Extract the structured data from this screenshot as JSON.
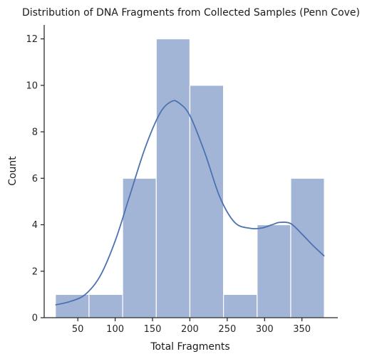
{
  "chart_data": {
    "type": "bar",
    "subtype": "histogram-with-kde",
    "title": "Distribution of DNA Fragments from Collected Samples (Penn Cove)",
    "xlabel": "Total Fragments",
    "ylabel": "Count",
    "xlim": [
      5,
      398
    ],
    "ylim": [
      0,
      12.6
    ],
    "xticks": [
      50,
      100,
      150,
      200,
      250,
      300,
      350
    ],
    "yticks": [
      0,
      2,
      4,
      6,
      8,
      10,
      12
    ],
    "grid": false,
    "legend": "none",
    "bins": [
      {
        "x0": 20,
        "x1": 65,
        "count": 1
      },
      {
        "x0": 65,
        "x1": 110,
        "count": 1
      },
      {
        "x0": 110,
        "x1": 155,
        "count": 6
      },
      {
        "x0": 155,
        "x1": 200,
        "count": 12
      },
      {
        "x0": 200,
        "x1": 245,
        "count": 10
      },
      {
        "x0": 245,
        "x1": 290,
        "count": 1
      },
      {
        "x0": 290,
        "x1": 335,
        "count": 4
      },
      {
        "x0": 335,
        "x1": 380,
        "count": 6
      }
    ],
    "kde": {
      "x": [
        20,
        40,
        60,
        80,
        100,
        120,
        140,
        160,
        175,
        185,
        200,
        220,
        240,
        260,
        280,
        295,
        310,
        320,
        335,
        350,
        365,
        380
      ],
      "y": [
        0.55,
        0.7,
        1.0,
        1.8,
        3.3,
        5.3,
        7.3,
        8.8,
        9.3,
        9.25,
        8.7,
        7.1,
        5.2,
        4.1,
        3.85,
        3.85,
        4.0,
        4.1,
        4.05,
        3.6,
        3.1,
        2.65
      ]
    },
    "colors": {
      "bar_fill": "#a3b5d6",
      "bar_edge": "#ffffff",
      "kde_line": "#4c72b0",
      "axis": "#262626"
    }
  }
}
